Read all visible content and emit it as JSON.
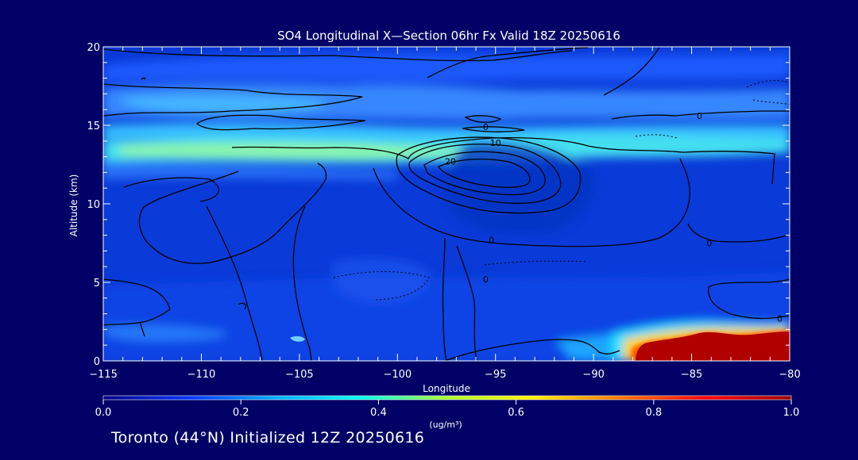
{
  "chart_data": {
    "type": "heatmap",
    "title": "SO4 Longitudinal X—Section 06hr  Fx Valid 18Z 20250616",
    "xlabel": "Longitude",
    "ylabel": "Altitude (km)",
    "xlim": [
      -115,
      -80
    ],
    "ylim": [
      0,
      20
    ],
    "x_ticks": [
      -115,
      -110,
      -105,
      -100,
      -95,
      -90,
      -85,
      -80
    ],
    "x_tick_labels": [
      "−115",
      "−110",
      "−105",
      "−100",
      "−95",
      "−90",
      "−85",
      "−80"
    ],
    "y_ticks": [
      0,
      5,
      10,
      15,
      20
    ],
    "y_tick_labels": [
      "0",
      "5",
      "10",
      "15",
      "20"
    ],
    "colorbar": {
      "min": 0.0,
      "max": 1.0,
      "tick_values": [
        0.0,
        0.2,
        0.4,
        0.6,
        0.8,
        1.0
      ],
      "tick_labels": [
        "0.0",
        "0.2",
        "0.4",
        "0.6",
        "0.8",
        "1.0"
      ],
      "unit_label": "(ug/m³)",
      "colors": [
        "#000080",
        "#0033ff",
        "#00aaff",
        "#00ffee",
        "#aaff33",
        "#ffee00",
        "#ff7700",
        "#ff0000",
        "#990000"
      ]
    },
    "grid": false,
    "contour_labels": [
      {
        "text": "0",
        "lon": -95.5,
        "alt": 14.9
      },
      {
        "text": "10",
        "lon": -95.0,
        "alt": 13.9
      },
      {
        "text": "20",
        "lon": -97.3,
        "alt": 12.7
      },
      {
        "text": "0",
        "lon": -84.6,
        "alt": 15.6
      },
      {
        "text": "0",
        "lon": -95.2,
        "alt": 7.7
      },
      {
        "text": "0",
        "lon": -95.5,
        "alt": 5.2
      },
      {
        "text": "0",
        "lon": -84.1,
        "alt": 7.5
      },
      {
        "text": "0",
        "lon": -80.5,
        "alt": 2.7
      }
    ],
    "concentration_regions": [
      {
        "name": "upper layer",
        "lon": [
          -115,
          -80
        ],
        "alt": [
          12.5,
          14.3
        ],
        "value": 0.45
      },
      {
        "name": "surface plume",
        "lon": [
          -88,
          -80
        ],
        "alt": [
          0,
          1.7
        ],
        "value": 1.0
      }
    ]
  },
  "footer": {
    "text": "Toronto (44°N) Initialized 12Z 20250616"
  }
}
